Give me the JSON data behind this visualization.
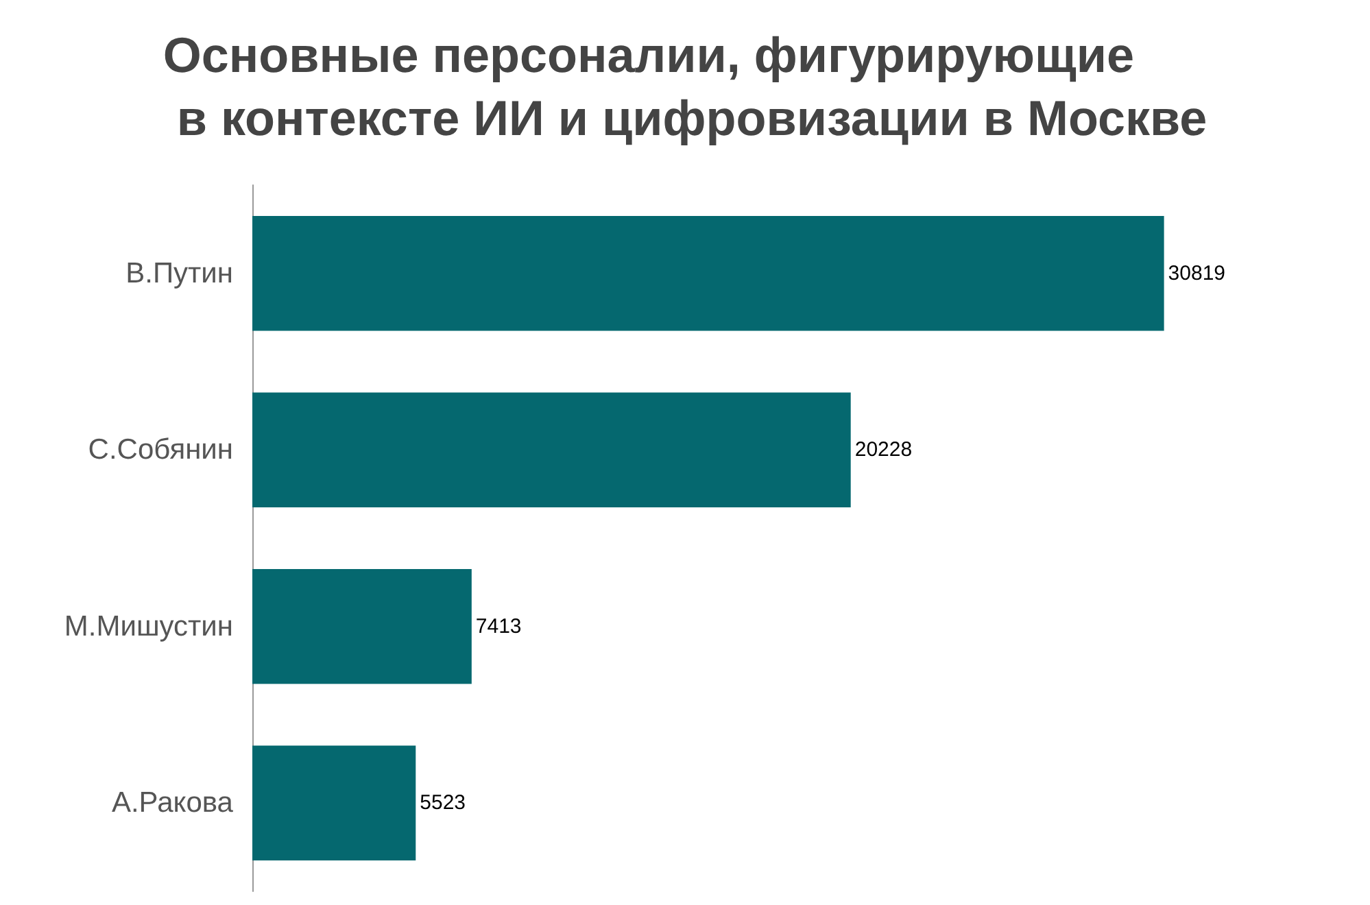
{
  "chart_data": {
    "type": "bar",
    "title": "Основные персоналии, фигурирующие\n в контексте ИИ и цифровизации в Москве",
    "orientation": "horizontal",
    "categories": [
      "В.Путин",
      "С.Собянин",
      "М.Мишустин",
      "А.Ракова"
    ],
    "values": [
      30819,
      20228,
      7413,
      5523
    ],
    "color": "#05686f",
    "data_labels": true
  }
}
